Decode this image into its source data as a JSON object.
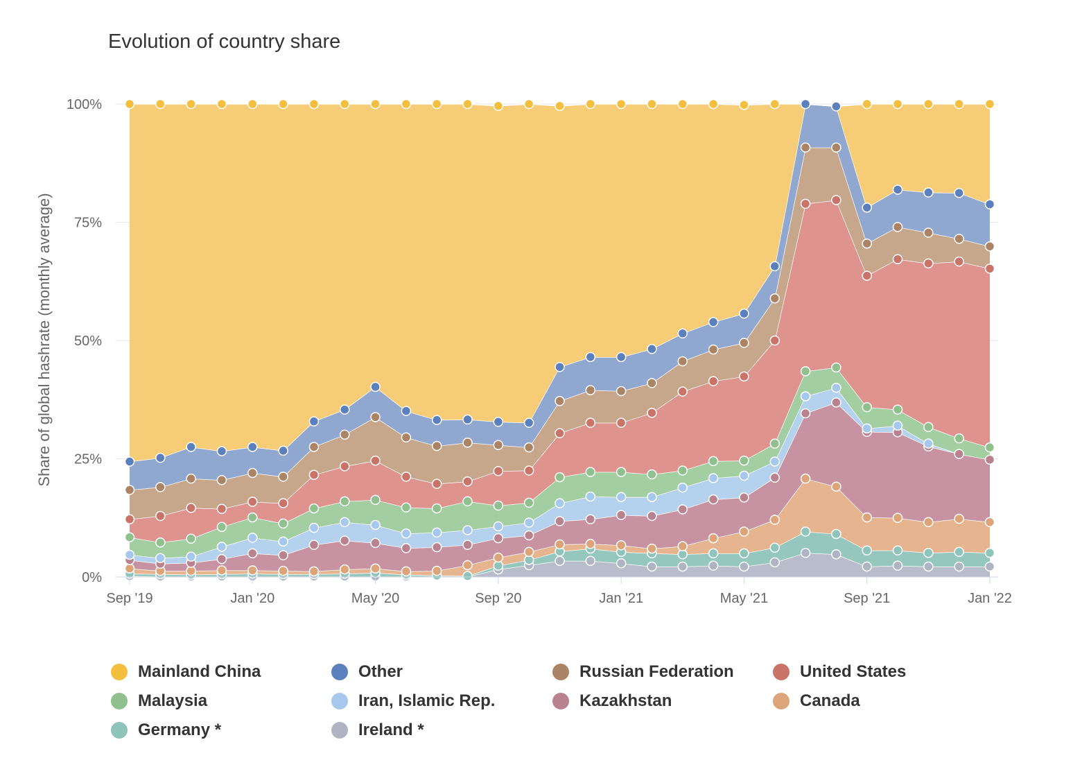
{
  "chart_data": {
    "type": "area",
    "stacked": true,
    "title": "Evolution of country share",
    "ylabel": "Share of global hashrate (monthly average)",
    "ylim": [
      0,
      100
    ],
    "yticks": [
      "0%",
      "25%",
      "50%",
      "75%",
      "100%"
    ],
    "ytick_values": [
      0,
      25,
      50,
      75,
      100
    ],
    "x": [
      "2019-09",
      "2019-10",
      "2019-11",
      "2019-12",
      "2020-01",
      "2020-02",
      "2020-03",
      "2020-04",
      "2020-05",
      "2020-06",
      "2020-07",
      "2020-08",
      "2020-09",
      "2020-10",
      "2020-11",
      "2020-12",
      "2021-01",
      "2021-02",
      "2021-03",
      "2021-04",
      "2021-05",
      "2021-06",
      "2021-07",
      "2021-08",
      "2021-09",
      "2021-10",
      "2021-11",
      "2021-12",
      "2022-01"
    ],
    "xticks": [
      {
        "label": "Sep '19",
        "index": 0
      },
      {
        "label": "Jan '20",
        "index": 4
      },
      {
        "label": "May '20",
        "index": 8
      },
      {
        "label": "Sep '20",
        "index": 12
      },
      {
        "label": "Jan '21",
        "index": 16
      },
      {
        "label": "May '21",
        "index": 20
      },
      {
        "label": "Sep '21",
        "index": 24
      },
      {
        "label": "Jan '22",
        "index": 28
      }
    ],
    "grid": true,
    "legend_position": "bottom",
    "series": [
      {
        "name": "Ireland *",
        "color": "#b4b9c8",
        "values": [
          0.2,
          0.1,
          0.1,
          0.1,
          0.1,
          0.1,
          0.1,
          0.1,
          0.1,
          0.1,
          0.1,
          0.1,
          1.6,
          2.5,
          3.4,
          3.4,
          2.9,
          2.2,
          2.2,
          2.4,
          2.2,
          3.1,
          5.1,
          4.8,
          2.2,
          2.4,
          2.2,
          2.2,
          2.2
        ]
      },
      {
        "name": "Germany *",
        "color": "#8fc4ba",
        "values": [
          0.5,
          0.5,
          0.4,
          0.5,
          0.6,
          0.5,
          0.5,
          0.6,
          0.8,
          0.4,
          0.2,
          0.1,
          0.8,
          1.1,
          2.0,
          2.6,
          2.4,
          2.8,
          2.6,
          2.6,
          2.8,
          3.1,
          4.5,
          4.3,
          3.4,
          3.2,
          2.9,
          3.1,
          2.9
        ]
      },
      {
        "name": "Canada",
        "color": "#e5b088",
        "values": [
          1.1,
          0.7,
          0.8,
          0.8,
          0.7,
          0.7,
          0.6,
          0.9,
          0.9,
          0.7,
          1.0,
          2.3,
          1.7,
          1.7,
          1.5,
          1.0,
          1.4,
          1.0,
          1.7,
          3.2,
          4.6,
          5.9,
          11.2,
          10.0,
          7.0,
          6.9,
          6.5,
          7.0,
          6.5
        ]
      },
      {
        "name": "Kazakhstan",
        "color": "#c48d9e",
        "values": [
          1.8,
          1.5,
          1.7,
          2.4,
          3.6,
          3.3,
          5.6,
          6.1,
          5.4,
          4.9,
          5.0,
          4.3,
          4.1,
          3.5,
          4.9,
          5.2,
          6.4,
          6.9,
          7.8,
          8.2,
          7.2,
          8.9,
          13.8,
          17.8,
          18.1,
          18.1,
          16.0,
          13.7,
          13.2
        ]
      },
      {
        "name": "Iran, Islamic Rep.",
        "color": "#b0cfec",
        "values": [
          1.1,
          1.2,
          1.3,
          2.6,
          3.3,
          2.9,
          3.6,
          3.9,
          3.8,
          3.1,
          3.1,
          3.1,
          2.5,
          2.7,
          3.8,
          4.8,
          3.8,
          4.0,
          4.6,
          4.5,
          4.6,
          3.4,
          3.6,
          3.1,
          0.7,
          1.4,
          0.6,
          0.0,
          0.0
        ]
      },
      {
        "name": "Malaysia",
        "color": "#9dcb9c",
        "values": [
          3.7,
          3.3,
          3.8,
          4.2,
          4.3,
          3.8,
          4.1,
          4.4,
          5.3,
          5.5,
          5.1,
          6.1,
          4.4,
          4.2,
          5.5,
          5.2,
          5.3,
          4.8,
          3.6,
          3.6,
          3.2,
          3.8,
          5.3,
          4.3,
          4.5,
          3.4,
          3.5,
          3.3,
          2.6
        ]
      },
      {
        "name": "United States",
        "color": "#dc8d88",
        "values": [
          3.8,
          5.6,
          6.5,
          3.8,
          3.3,
          4.3,
          7.1,
          7.4,
          8.3,
          6.5,
          5.2,
          4.2,
          7.3,
          6.8,
          9.3,
          10.4,
          10.4,
          13.0,
          16.7,
          16.9,
          17.8,
          21.8,
          35.4,
          35.4,
          27.8,
          31.8,
          34.6,
          37.4,
          37.8
        ]
      },
      {
        "name": "Russian Federation",
        "color": "#c4a285",
        "values": [
          6.2,
          6.1,
          6.2,
          6.1,
          6.1,
          5.6,
          5.9,
          6.7,
          9.2,
          8.3,
          8.0,
          8.2,
          5.5,
          4.9,
          6.8,
          6.9,
          6.7,
          6.3,
          6.4,
          6.7,
          7.1,
          8.9,
          11.9,
          11.1,
          6.8,
          6.8,
          6.5,
          4.8,
          4.7
        ]
      },
      {
        "name": "Other",
        "color": "#8aa2cc",
        "values": [
          6.0,
          6.2,
          6.7,
          6.1,
          5.5,
          5.5,
          5.4,
          5.3,
          6.4,
          5.6,
          5.5,
          4.9,
          4.9,
          5.2,
          7.2,
          7.0,
          7.2,
          7.2,
          5.9,
          5.8,
          6.2,
          6.8,
          9.2,
          8.7,
          7.6,
          7.9,
          8.5,
          9.7,
          8.9
        ]
      },
      {
        "name": "Mainland China",
        "color": "#f6c970",
        "values": [
          75.6,
          74.8,
          72.5,
          73.4,
          72.5,
          73.3,
          67.1,
          64.6,
          59.8,
          64.9,
          66.8,
          66.7,
          66.8,
          67.4,
          55.2,
          53.5,
          53.5,
          51.8,
          48.5,
          46.1,
          44.1,
          34.3,
          0.0,
          0.0,
          21.9,
          18.1,
          18.7,
          18.8,
          21.2
        ]
      }
    ]
  },
  "legend": {
    "items": [
      {
        "label": "Mainland China",
        "color": "#f4bf3f"
      },
      {
        "label": "Other",
        "color": "#5b80bd"
      },
      {
        "label": "Russian Federation",
        "color": "#aa8464"
      },
      {
        "label": "United States",
        "color": "#c97369"
      },
      {
        "label": "Malaysia",
        "color": "#8fc08e"
      },
      {
        "label": "Iran, Islamic Rep.",
        "color": "#a6c8ec"
      },
      {
        "label": "Kazakhstan",
        "color": "#b9828f"
      },
      {
        "label": "Canada",
        "color": "#dea479"
      },
      {
        "label": "Germany *",
        "color": "#8fc4ba"
      },
      {
        "label": "Ireland *",
        "color": "#afb4c2"
      }
    ]
  }
}
